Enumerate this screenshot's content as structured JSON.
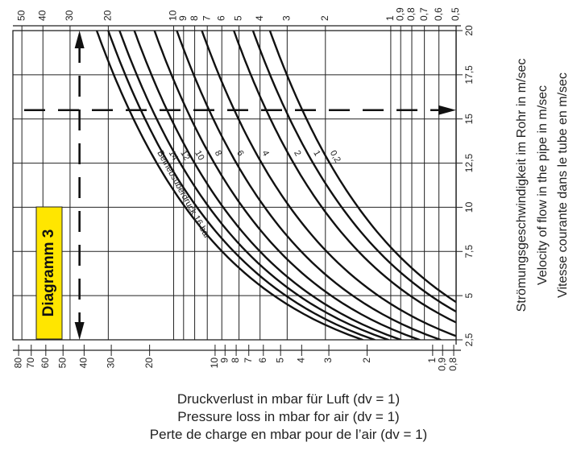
{
  "chart_data": {
    "type": "line",
    "badge": "Diagramm 3",
    "curve_series_title": "Betriebsüberdruck",
    "curve_unit": "bar",
    "ylabel_lines": [
      "Strömungsgeschwindigkeit im Rohr in m/sec",
      "Velocity of flow in the pipe in m/sec",
      "Vitesse courante dans le tube en m/sec"
    ],
    "xlabel_lines": [
      "Druckverlust in mbar für Luft (dv = 1)",
      "Pressure loss in mbar for air (dv = 1)",
      "Perte de charge en mbar pour de l’air (dv = 1)"
    ],
    "velocity_ticks": [
      2.5,
      5,
      7.5,
      10,
      12.5,
      15,
      17.5,
      20
    ],
    "velocity_tick_labels": [
      "2,5",
      "5",
      "7,5",
      "10",
      "12,5",
      "15",
      "17,5",
      "20"
    ],
    "velocity_range": [
      2.5,
      20
    ],
    "pressure_loss_top_ticks": [
      {
        "value": 50,
        "label": "50"
      },
      {
        "value": 40,
        "label": "40"
      },
      {
        "value": 30,
        "label": "30"
      },
      {
        "value": 20,
        "label": "20"
      },
      {
        "value": 10,
        "label": "10"
      },
      {
        "value": 9,
        "label": "9"
      },
      {
        "value": 8,
        "label": "8"
      },
      {
        "value": 7,
        "label": "7"
      },
      {
        "value": 6,
        "label": "6"
      },
      {
        "value": 5,
        "label": "5"
      },
      {
        "value": 4,
        "label": "4"
      },
      {
        "value": 3,
        "label": "3"
      },
      {
        "value": 2,
        "label": "2"
      },
      {
        "value": 1,
        "label": "1"
      },
      {
        "value": 0.9,
        "label": "0,9"
      },
      {
        "value": 0.8,
        "label": "0,8"
      },
      {
        "value": 0.7,
        "label": "0,7"
      },
      {
        "value": 0.6,
        "label": "0,6"
      },
      {
        "value": 0.5,
        "label": "0,5"
      }
    ],
    "pressure_loss_bottom_ticks": [
      {
        "value": 80,
        "label": "80"
      },
      {
        "value": 70,
        "label": "70"
      },
      {
        "value": 60,
        "label": "60"
      },
      {
        "value": 50,
        "label": "50"
      },
      {
        "value": 40,
        "label": "40"
      },
      {
        "value": 30,
        "label": "30"
      },
      {
        "value": 20,
        "label": "20"
      },
      {
        "value": 10,
        "label": "10"
      },
      {
        "value": 9,
        "label": "9"
      },
      {
        "value": 8,
        "label": "8"
      },
      {
        "value": 7,
        "label": "7"
      },
      {
        "value": 6,
        "label": "6"
      },
      {
        "value": 5,
        "label": "5"
      },
      {
        "value": 4,
        "label": "4"
      },
      {
        "value": 3,
        "label": "3"
      },
      {
        "value": 2,
        "label": "2"
      },
      {
        "value": 1,
        "label": "1"
      },
      {
        "value": 0.9,
        "label": "0,9"
      },
      {
        "value": 0.8,
        "label": "0,8"
      }
    ],
    "top_scale": {
      "value_left": 55,
      "value_right": 0.5
    },
    "bottom_scale": {
      "value_left": 85,
      "value_right": 0.78
    },
    "series": [
      {
        "name": "16",
        "label": "16 bar",
        "points": [
          [
            2.5,
            2.1
          ],
          [
            20,
            35
          ]
        ]
      },
      {
        "name": "14",
        "label": "14",
        "points": [
          [
            2.5,
            1.85
          ],
          [
            20,
            31
          ]
        ]
      },
      {
        "name": "12",
        "label": "12",
        "points": [
          [
            2.5,
            1.6
          ],
          [
            20,
            27.5
          ]
        ]
      },
      {
        "name": "10",
        "label": "10",
        "points": [
          [
            2.5,
            1.4
          ],
          [
            20,
            23.5
          ]
        ]
      },
      {
        "name": "8",
        "label": "8",
        "points": [
          [
            2.5,
            1.15
          ],
          [
            20,
            19
          ]
        ]
      },
      {
        "name": "6",
        "label": "6",
        "points": [
          [
            2.5,
            0.92
          ],
          [
            20,
            15
          ]
        ]
      },
      {
        "name": "4",
        "label": "4",
        "points": [
          [
            2.5,
            0.7
          ],
          [
            20,
            11.5
          ]
        ]
      },
      {
        "name": "2",
        "label": "2",
        "points": [
          [
            2.5,
            0.5
          ],
          [
            20,
            8.2
          ]
        ]
      },
      {
        "name": "1",
        "label": "1",
        "points": [
          [
            2.5,
            0.4
          ],
          [
            20,
            6.7
          ]
        ]
      },
      {
        "name": "0.2",
        "label": "0,2",
        "points": [
          [
            2.5,
            0.34
          ],
          [
            20,
            5.6
          ]
        ]
      }
    ],
    "example": {
      "velocity": 15.5,
      "pressure_loss": 42
    }
  }
}
